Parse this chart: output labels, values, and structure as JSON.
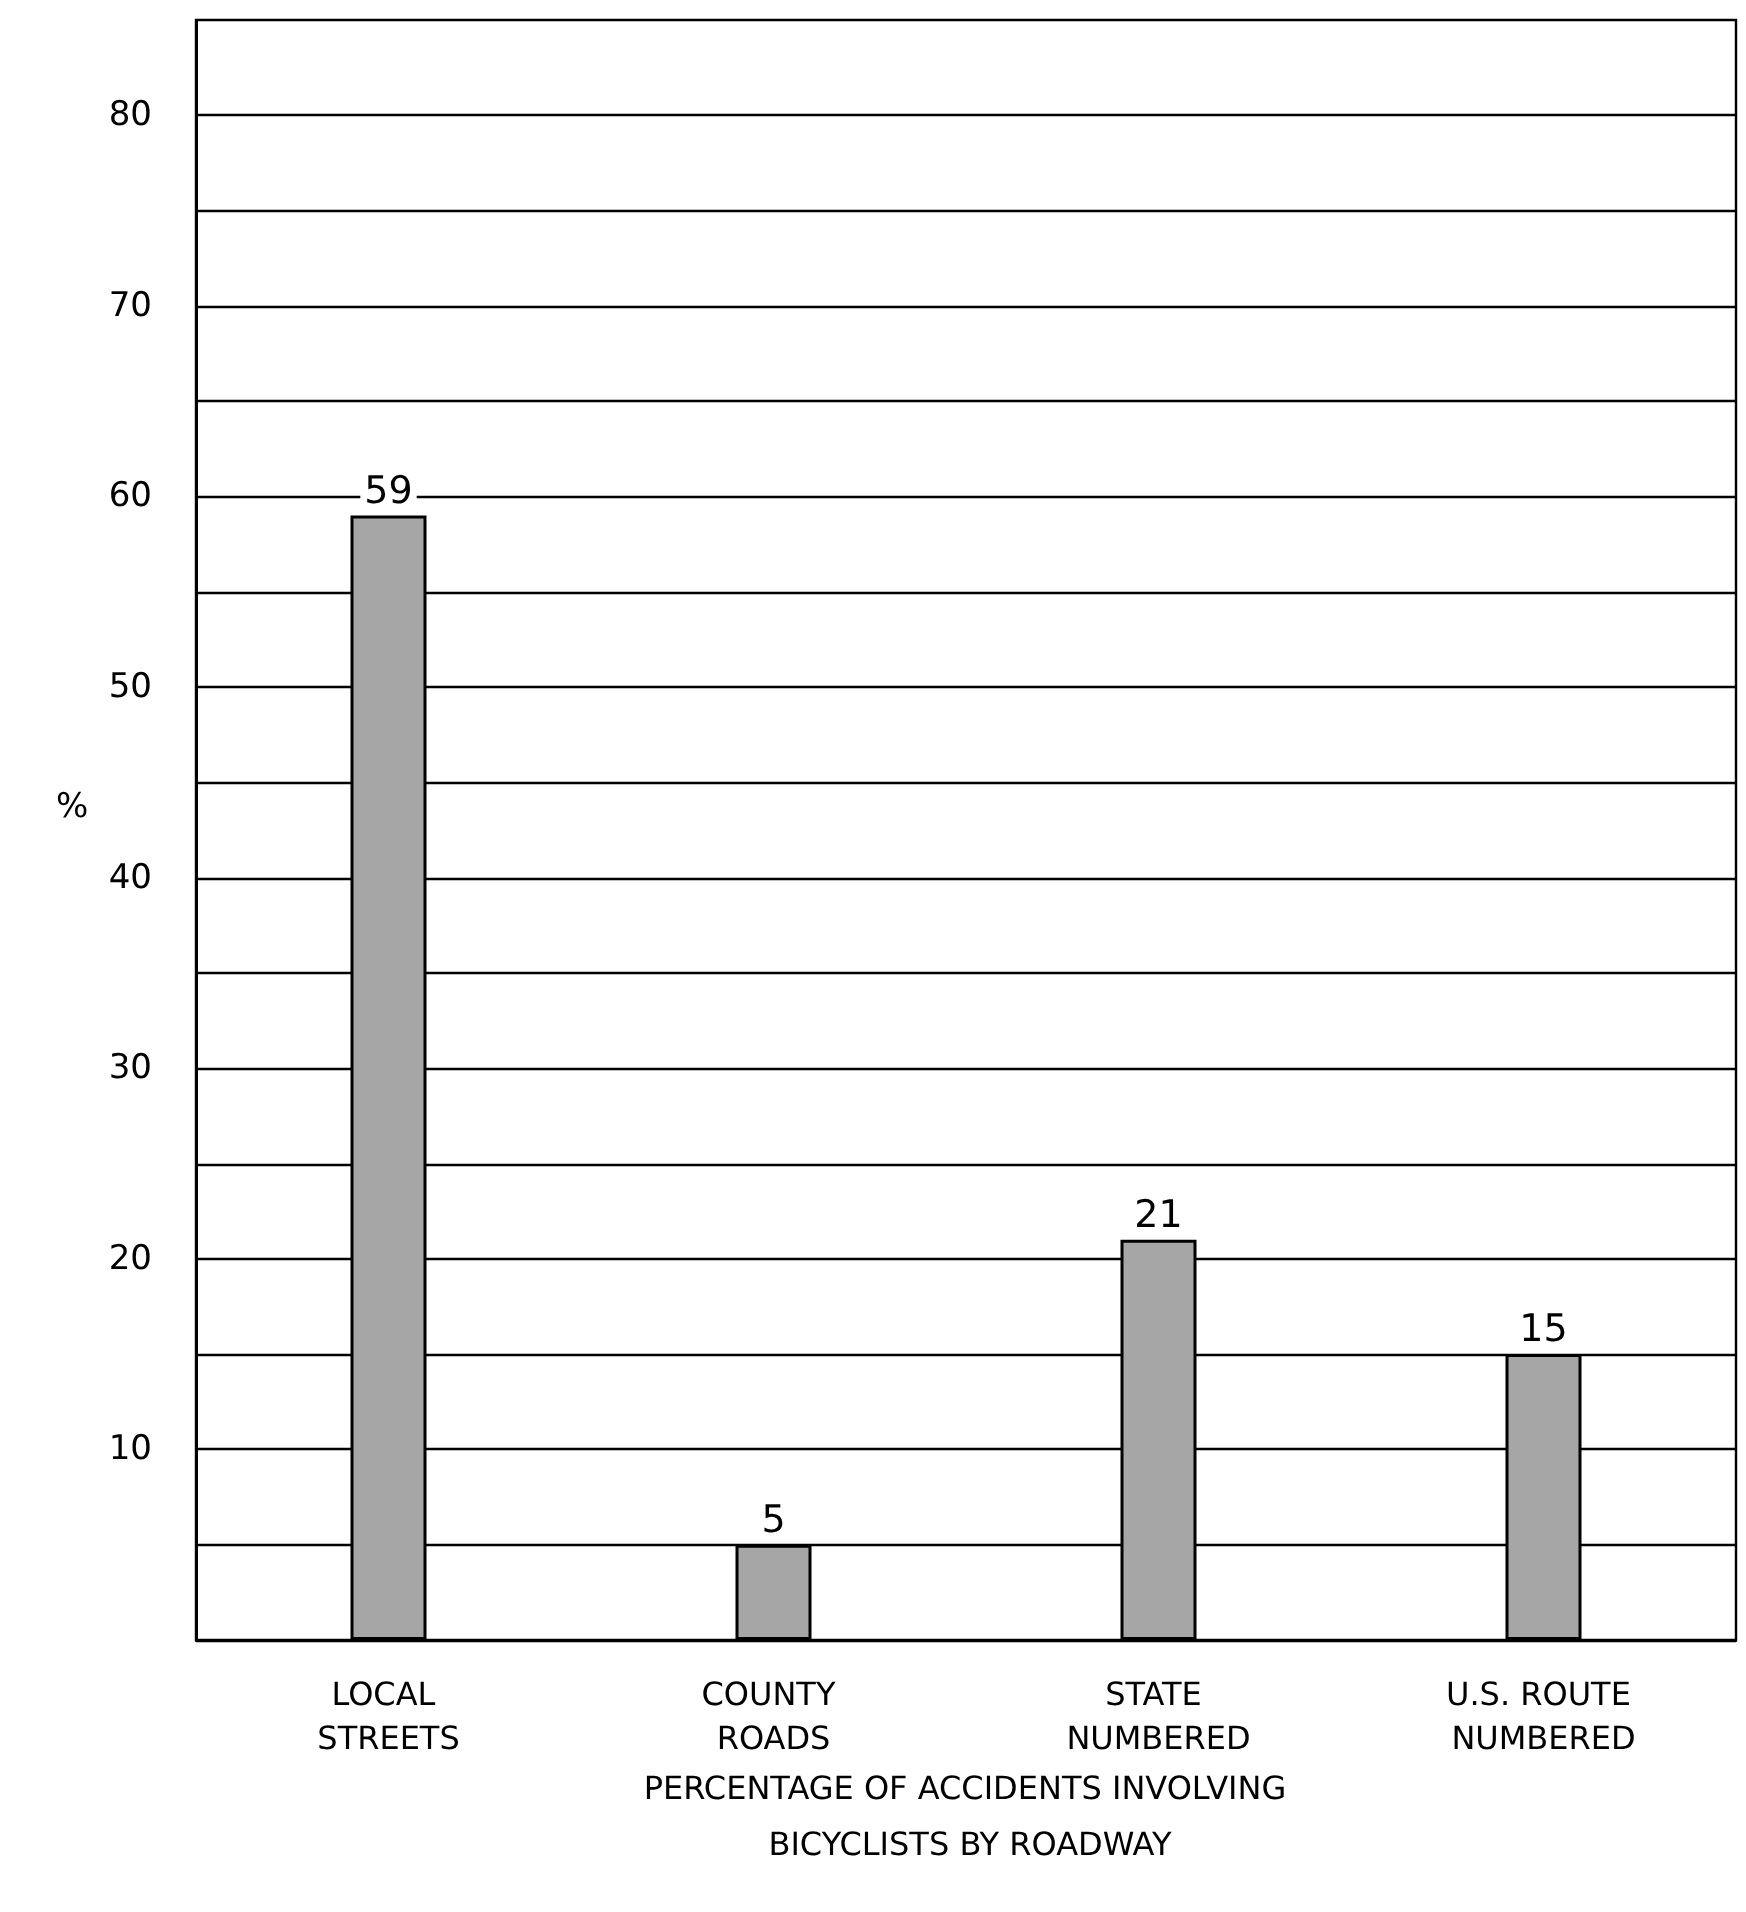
{
  "chart_data": {
    "type": "bar",
    "xlabel": "PERCENTAGE OF ACCIDENTS INVOLVING BICYCLISTS BY ROADWAY",
    "ylabel": "%",
    "categories": [
      "LOCAL STREETS",
      "COUNTY ROADS",
      "STATE NUMBERED",
      "U.S. ROUTE NUMBERED"
    ],
    "values": [
      59,
      5,
      21,
      15
    ],
    "color": "#a6a6a6",
    "data_labels": true,
    "grid": "y",
    "ylim": [
      0,
      85
    ],
    "yticks": [
      {
        "value": 0,
        "label": null
      },
      {
        "value": 5,
        "label": null
      },
      10,
      {
        "value": 15,
        "label": null
      },
      20,
      {
        "value": 25,
        "label": null
      },
      30,
      {
        "value": 35,
        "label": null
      },
      40,
      {
        "value": 45,
        "label": null
      },
      50,
      {
        "value": 55,
        "label": null
      },
      60,
      {
        "value": 65,
        "label": null
      },
      70,
      {
        "value": 75,
        "label": null
      },
      80
    ]
  }
}
